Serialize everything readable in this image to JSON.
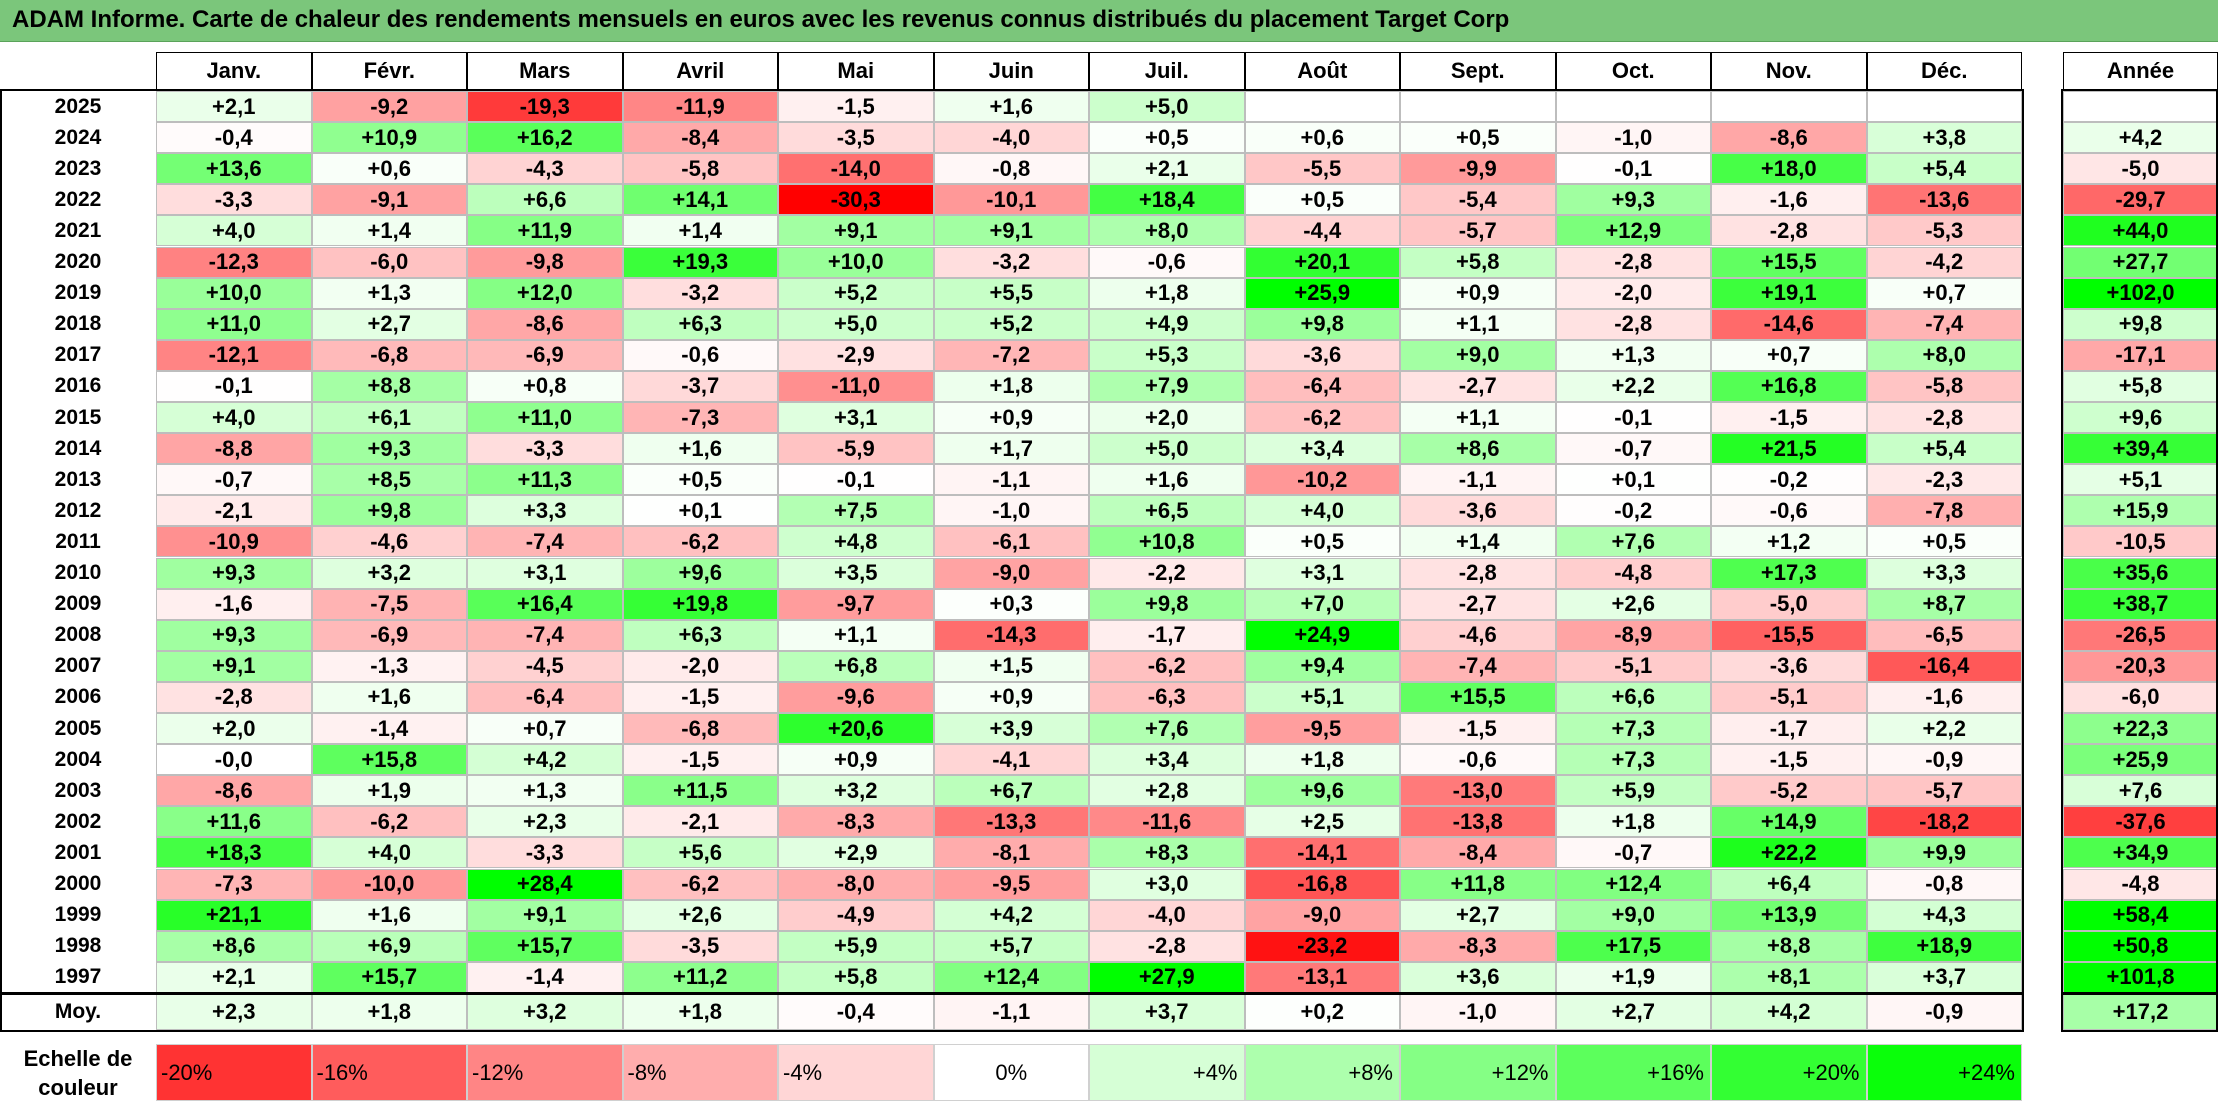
{
  "title": "ADAM Informe. Carte de chaleur des rendements mensuels en euros avec les revenus connus distribués du placement Target Corp",
  "chart_data": {
    "type": "heatmap",
    "columns": [
      "Janv.",
      "Févr.",
      "Mars",
      "Avril",
      "Mai",
      "Juin",
      "Juil.",
      "Août",
      "Sept.",
      "Oct.",
      "Nov.",
      "Déc."
    ],
    "annual_header": "Année",
    "rows": [
      {
        "year": "2025",
        "values": [
          "+2,1",
          "-9,2",
          "-19,3",
          "-11,9",
          "-1,5",
          "+1,6",
          "+5,0",
          "",
          "",
          "",
          "",
          ""
        ],
        "annual": ""
      },
      {
        "year": "2024",
        "values": [
          "-0,4",
          "+10,9",
          "+16,2",
          "-8,4",
          "-3,5",
          "-4,0",
          "+0,5",
          "+0,6",
          "+0,5",
          "-1,0",
          "-8,6",
          "+3,8"
        ],
        "annual": "+4,2"
      },
      {
        "year": "2023",
        "values": [
          "+13,6",
          "+0,6",
          "-4,3",
          "-5,8",
          "-14,0",
          "-0,8",
          "+2,1",
          "-5,5",
          "-9,9",
          "-0,1",
          "+18,0",
          "+5,4"
        ],
        "annual": "-5,0"
      },
      {
        "year": "2022",
        "values": [
          "-3,3",
          "-9,1",
          "+6,6",
          "+14,1",
          "-30,3",
          "-10,1",
          "+18,4",
          "+0,5",
          "-5,4",
          "+9,3",
          "-1,6",
          "-13,6"
        ],
        "annual": "-29,7"
      },
      {
        "year": "2021",
        "values": [
          "+4,0",
          "+1,4",
          "+11,9",
          "+1,4",
          "+9,1",
          "+9,1",
          "+8,0",
          "-4,4",
          "-5,7",
          "+12,9",
          "-2,8",
          "-5,3"
        ],
        "annual": "+44,0"
      },
      {
        "year": "2020",
        "values": [
          "-12,3",
          "-6,0",
          "-9,8",
          "+19,3",
          "+10,0",
          "-3,2",
          "-0,6",
          "+20,1",
          "+5,8",
          "-2,8",
          "+15,5",
          "-4,2"
        ],
        "annual": "+27,7"
      },
      {
        "year": "2019",
        "values": [
          "+10,0",
          "+1,3",
          "+12,0",
          "-3,2",
          "+5,2",
          "+5,5",
          "+1,8",
          "+25,9",
          "+0,9",
          "-2,0",
          "+19,1",
          "+0,7"
        ],
        "annual": "+102,0"
      },
      {
        "year": "2018",
        "values": [
          "+11,0",
          "+2,7",
          "-8,6",
          "+6,3",
          "+5,0",
          "+5,2",
          "+4,9",
          "+9,8",
          "+1,1",
          "-2,8",
          "-14,6",
          "-7,4"
        ],
        "annual": "+9,8"
      },
      {
        "year": "2017",
        "values": [
          "-12,1",
          "-6,8",
          "-6,9",
          "-0,6",
          "-2,9",
          "-7,2",
          "+5,3",
          "-3,6",
          "+9,0",
          "+1,3",
          "+0,7",
          "+8,0"
        ],
        "annual": "-17,1"
      },
      {
        "year": "2016",
        "values": [
          "-0,1",
          "+8,8",
          "+0,8",
          "-3,7",
          "-11,0",
          "+1,8",
          "+7,9",
          "-6,4",
          "-2,7",
          "+2,2",
          "+16,8",
          "-5,8"
        ],
        "annual": "+5,8"
      },
      {
        "year": "2015",
        "values": [
          "+4,0",
          "+6,1",
          "+11,0",
          "-7,3",
          "+3,1",
          "+0,9",
          "+2,0",
          "-6,2",
          "+1,1",
          "-0,1",
          "-1,5",
          "-2,8"
        ],
        "annual": "+9,6"
      },
      {
        "year": "2014",
        "values": [
          "-8,8",
          "+9,3",
          "-3,3",
          "+1,6",
          "-5,9",
          "+1,7",
          "+5,0",
          "+3,4",
          "+8,6",
          "-0,7",
          "+21,5",
          "+5,4"
        ],
        "annual": "+39,4"
      },
      {
        "year": "2013",
        "values": [
          "-0,7",
          "+8,5",
          "+11,3",
          "+0,5",
          "-0,1",
          "-1,1",
          "+1,6",
          "-10,2",
          "-1,1",
          "+0,1",
          "-0,2",
          "-2,3"
        ],
        "annual": "+5,1"
      },
      {
        "year": "2012",
        "values": [
          "-2,1",
          "+9,8",
          "+3,3",
          "+0,1",
          "+7,5",
          "-1,0",
          "+6,5",
          "+4,0",
          "-3,6",
          "-0,2",
          "-0,6",
          "-7,8"
        ],
        "annual": "+15,9"
      },
      {
        "year": "2011",
        "values": [
          "-10,9",
          "-4,6",
          "-7,4",
          "-6,2",
          "+4,8",
          "-6,1",
          "+10,8",
          "+0,5",
          "+1,4",
          "+7,6",
          "+1,2",
          "+0,5"
        ],
        "annual": "-10,5"
      },
      {
        "year": "2010",
        "values": [
          "+9,3",
          "+3,2",
          "+3,1",
          "+9,6",
          "+3,5",
          "-9,0",
          "-2,2",
          "+3,1",
          "-2,8",
          "-4,8",
          "+17,3",
          "+3,3"
        ],
        "annual": "+35,6"
      },
      {
        "year": "2009",
        "values": [
          "-1,6",
          "-7,5",
          "+16,4",
          "+19,8",
          "-9,7",
          "+0,3",
          "+9,8",
          "+7,0",
          "-2,7",
          "+2,6",
          "-5,0",
          "+8,7"
        ],
        "annual": "+38,7"
      },
      {
        "year": "2008",
        "values": [
          "+9,3",
          "-6,9",
          "-7,4",
          "+6,3",
          "+1,1",
          "-14,3",
          "-1,7",
          "+24,9",
          "-4,6",
          "-8,9",
          "-15,5",
          "-6,5"
        ],
        "annual": "-26,5"
      },
      {
        "year": "2007",
        "values": [
          "+9,1",
          "-1,3",
          "-4,5",
          "-2,0",
          "+6,8",
          "+1,5",
          "-6,2",
          "+9,4",
          "-7,4",
          "-5,1",
          "-3,6",
          "-16,4"
        ],
        "annual": "-20,3"
      },
      {
        "year": "2006",
        "values": [
          "-2,8",
          "+1,6",
          "-6,4",
          "-1,5",
          "-9,6",
          "+0,9",
          "-6,3",
          "+5,1",
          "+15,5",
          "+6,6",
          "-5,1",
          "-1,6"
        ],
        "annual": "-6,0"
      },
      {
        "year": "2005",
        "values": [
          "+2,0",
          "-1,4",
          "+0,7",
          "-6,8",
          "+20,6",
          "+3,9",
          "+7,6",
          "-9,5",
          "-1,5",
          "+7,3",
          "-1,7",
          "+2,2"
        ],
        "annual": "+22,3"
      },
      {
        "year": "2004",
        "values": [
          "-0,0",
          "+15,8",
          "+4,2",
          "-1,5",
          "+0,9",
          "-4,1",
          "+3,4",
          "+1,8",
          "-0,6",
          "+7,3",
          "-1,5",
          "-0,9"
        ],
        "annual": "+25,9"
      },
      {
        "year": "2003",
        "values": [
          "-8,6",
          "+1,9",
          "+1,3",
          "+11,5",
          "+3,2",
          "+6,7",
          "+2,8",
          "+9,6",
          "-13,0",
          "+5,9",
          "-5,2",
          "-5,7"
        ],
        "annual": "+7,6"
      },
      {
        "year": "2002",
        "values": [
          "+11,6",
          "-6,2",
          "+2,3",
          "-2,1",
          "-8,3",
          "-13,3",
          "-11,6",
          "+2,5",
          "-13,8",
          "+1,8",
          "+14,9",
          "-18,2"
        ],
        "annual": "-37,6"
      },
      {
        "year": "2001",
        "values": [
          "+18,3",
          "+4,0",
          "-3,3",
          "+5,6",
          "+2,9",
          "-8,1",
          "+8,3",
          "-14,1",
          "-8,4",
          "-0,7",
          "+22,2",
          "+9,9"
        ],
        "annual": "+34,9"
      },
      {
        "year": "2000",
        "values": [
          "-7,3",
          "-10,0",
          "+28,4",
          "-6,2",
          "-8,0",
          "-9,5",
          "+3,0",
          "-16,8",
          "+11,8",
          "+12,4",
          "+6,4",
          "-0,8"
        ],
        "annual": "-4,8"
      },
      {
        "year": "1999",
        "values": [
          "+21,1",
          "+1,6",
          "+9,1",
          "+2,6",
          "-4,9",
          "+4,2",
          "-4,0",
          "-9,0",
          "+2,7",
          "+9,0",
          "+13,9",
          "+4,3"
        ],
        "annual": "+58,4"
      },
      {
        "year": "1998",
        "values": [
          "+8,6",
          "+6,9",
          "+15,7",
          "-3,5",
          "+5,9",
          "+5,7",
          "-2,8",
          "-23,2",
          "-8,3",
          "+17,5",
          "+8,8",
          "+18,9"
        ],
        "annual": "+50,8"
      },
      {
        "year": "1997",
        "values": [
          "+2,1",
          "+15,7",
          "-1,4",
          "+11,2",
          "+5,8",
          "+12,4",
          "+27,9",
          "-13,1",
          "+3,6",
          "+1,9",
          "+8,1",
          "+3,7"
        ],
        "annual": "+101,8"
      }
    ],
    "average": {
      "label": "Moy.",
      "values": [
        "+2,3",
        "+1,8",
        "+3,2",
        "+1,8",
        "-0,4",
        "-1,1",
        "+3,7",
        "+0,2",
        "-1,0",
        "+2,7",
        "+4,2",
        "-0,9"
      ],
      "annual": "+17,2"
    },
    "color_scale": {
      "title": "Echelle de couleur",
      "labels": [
        "-20%",
        "-16%",
        "-12%",
        "-8%",
        "-4%",
        "0%",
        "+4%",
        "+8%",
        "+12%",
        "+16%",
        "+20%",
        "+24%"
      ],
      "stops": [
        -20,
        -16,
        -12,
        -8,
        -4,
        0,
        4,
        8,
        12,
        16,
        20,
        24
      ],
      "negative_color": "#ff0000",
      "neutral_color": "#ffffff",
      "positive_color": "#00ff00"
    }
  }
}
